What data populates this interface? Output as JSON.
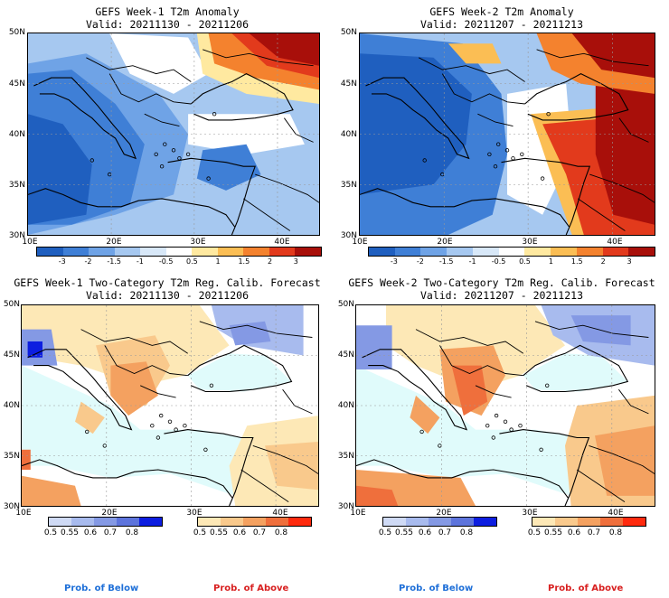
{
  "panels": [
    {
      "id": "p1",
      "title": "GEFS Week-1 T2m Anomaly",
      "valid": "Valid: 20211130 - 20211206"
    },
    {
      "id": "p2",
      "title": "GEFS Week-2 T2m Anomaly",
      "valid": "Valid: 20211207 - 20211213"
    },
    {
      "id": "p3",
      "title": "GEFS Week-1 Two-Category T2m Reg. Calib. Forecast",
      "valid": "Valid: 20211130 - 20211206"
    },
    {
      "id": "p4",
      "title": "GEFS Week-2 Two-Category T2m Reg. Calib. Forecast",
      "valid": "Valid: 20211207 - 20211213"
    }
  ],
  "axes": {
    "lat_labels": [
      "50N",
      "45N",
      "40N",
      "35N",
      "30N"
    ],
    "lon_labels": [
      "10E",
      "20E",
      "30E",
      "40E"
    ]
  },
  "anomaly_colorbar": {
    "labels": [
      "-3",
      "-2",
      "-1.5",
      "-1",
      "-0.5",
      "0.5",
      "1",
      "1.5",
      "2",
      "3"
    ],
    "colors": [
      "#1f5fbf",
      "#3f7fd6",
      "#6fa3e6",
      "#a6c8f0",
      "#d8e8f8",
      "#ffffff",
      "#ffe9a0",
      "#fbbe54",
      "#f4822e",
      "#e23a1c",
      "#a80f0a"
    ]
  },
  "prob_colorbars": {
    "below_labels": [
      "0.5",
      "0.55",
      "0.6",
      "0.7",
      "0.8"
    ],
    "above_labels": [
      "0.5",
      "0.55",
      "0.6",
      "0.7",
      "0.8"
    ],
    "below_colors": [
      "#cfdaf5",
      "#a8bbee",
      "#8499e4",
      "#5d74dc",
      "#0d1ee0"
    ],
    "above_colors": [
      "#fde8b6",
      "#f9c98c",
      "#f4a160",
      "#ef6f3c",
      "#ff2a0e"
    ],
    "below_title": "Prob. of Below",
    "above_title": "Prob. of Above",
    "below_title_color": "#1e6fd8",
    "above_title_color": "#d82020"
  },
  "colors": {
    "sea_neutral": "#e0fbfb",
    "land_neutral": "#ffffff"
  }
}
